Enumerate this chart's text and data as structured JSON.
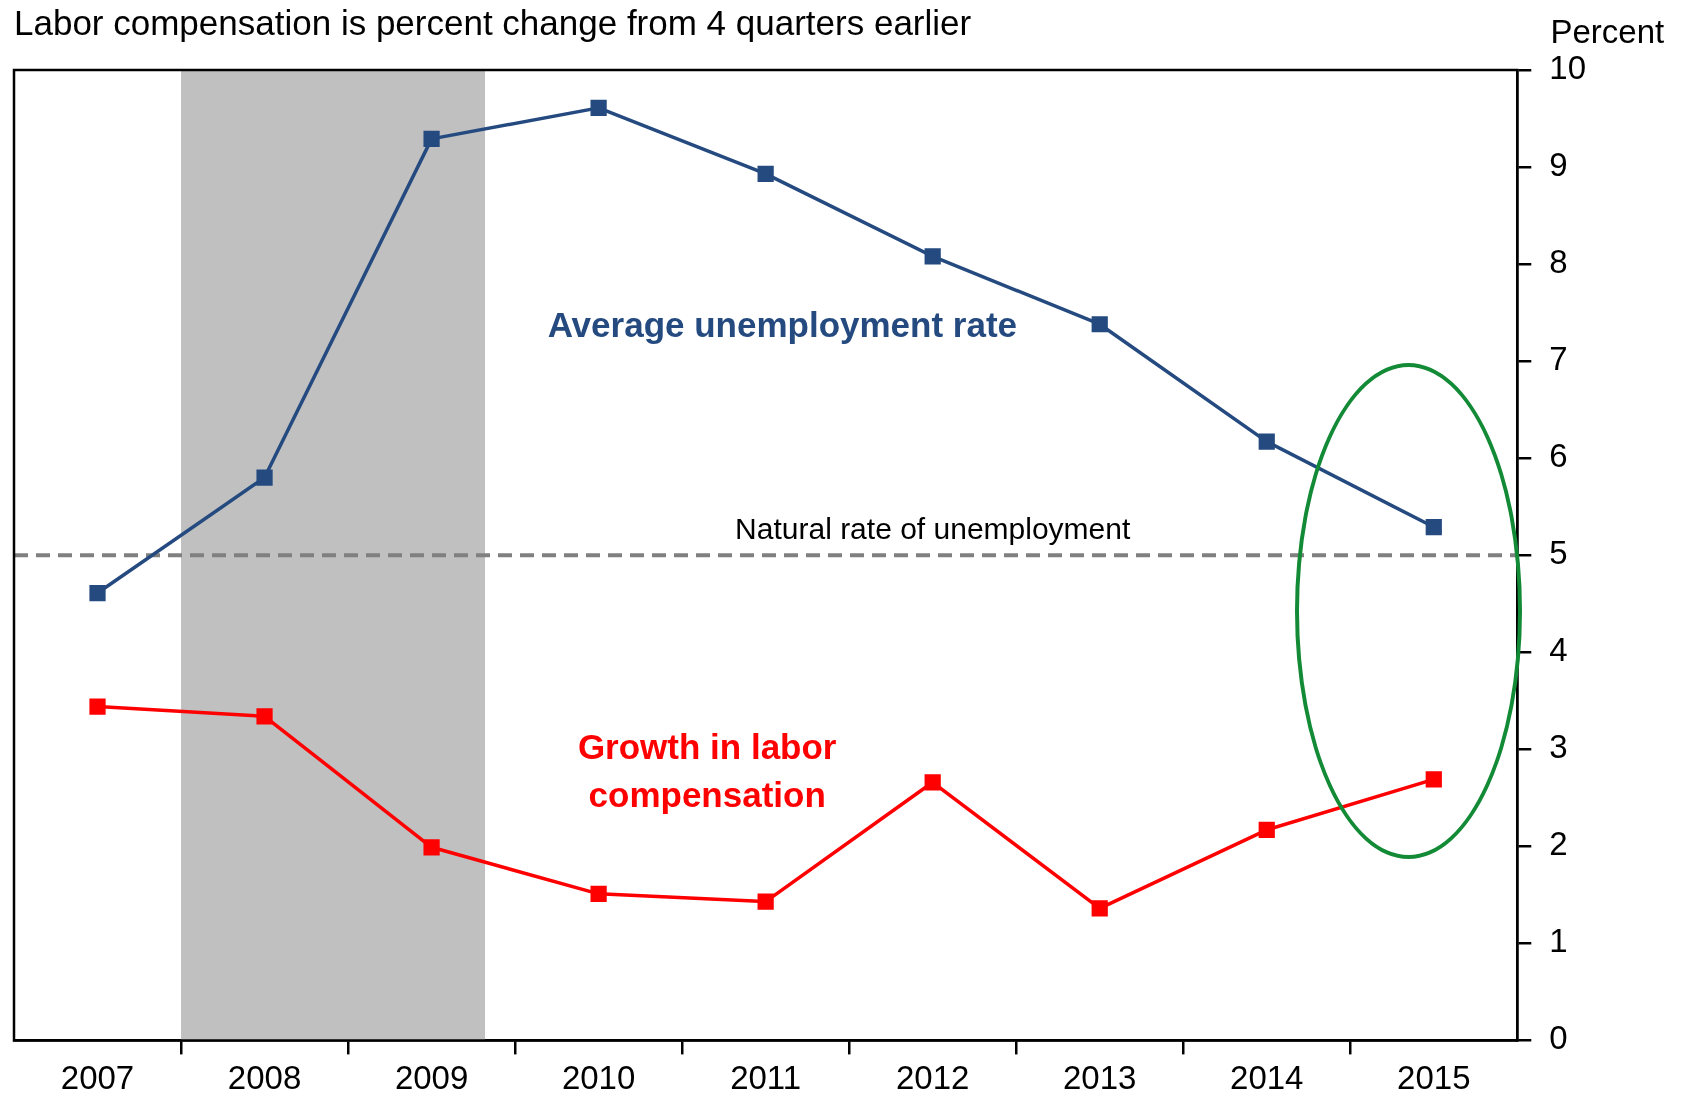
{
  "chart_data": {
    "type": "line",
    "title": "Labor compensation is percent change from 4 quarters earlier",
    "ylabel": "Percent",
    "x": [
      2007,
      2008,
      2009,
      2010,
      2011,
      2012,
      2013,
      2014,
      2015
    ],
    "series": [
      {
        "name": "Average unemployment rate",
        "color": "#244a80",
        "values": [
          4.61,
          5.8,
          9.29,
          9.61,
          8.93,
          8.08,
          7.38,
          6.17,
          5.29
        ]
      },
      {
        "name": "Growth in labor compensation",
        "color": "#ff0000",
        "values": [
          3.44,
          3.34,
          1.99,
          1.51,
          1.43,
          2.66,
          1.36,
          2.17,
          2.69
        ]
      }
    ],
    "xlim": [
      2006.5,
      2015.5
    ],
    "xticks": [
      2007,
      {
        "value": 2007.5,
        "label": null
      },
      2008,
      {
        "value": 2008.5,
        "label": null
      },
      2009,
      {
        "value": 2009.5,
        "label": null
      },
      2010,
      {
        "value": 2010.5,
        "label": null
      },
      2011,
      {
        "value": 2011.5,
        "label": null
      },
      2012,
      {
        "value": 2012.5,
        "label": null
      },
      2013,
      {
        "value": 2013.5,
        "label": null
      },
      2014,
      {
        "value": 2014.5,
        "label": null
      },
      2015
    ],
    "ylim": [
      0,
      10
    ],
    "yticks": [
      0,
      1,
      2,
      3,
      4,
      5,
      6,
      7,
      8,
      9,
      10
    ],
    "bands": [
      {
        "axis": "x",
        "from": 2007.5,
        "to": 2009.32,
        "label": null,
        "color": "#c0c0c0"
      }
    ],
    "ref_lines": [
      {
        "axis": "y",
        "value": 5,
        "label": "Natural rate of unemployment",
        "color": "#808080",
        "line_style": "dashed"
      }
    ],
    "grid": false,
    "legend": false,
    "marker": "square",
    "line_style": "solid"
  }
}
